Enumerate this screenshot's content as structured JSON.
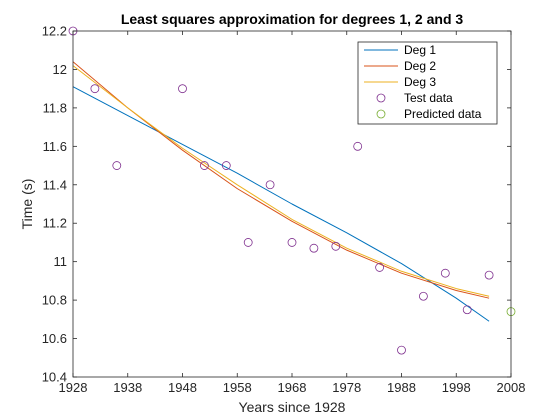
{
  "chart_data": {
    "type": "line",
    "title": "Least squares approximation for degrees 1, 2 and 3",
    "xlabel": "Years since 1928",
    "ylabel": "Time (s)",
    "xlim": [
      1928,
      2008
    ],
    "ylim": [
      10.4,
      12.2
    ],
    "x_ticks": [
      1928,
      1938,
      1948,
      1958,
      1968,
      1978,
      1988,
      1998,
      2008
    ],
    "y_ticks": [
      10.4,
      10.6,
      10.8,
      11,
      11.2,
      11.4,
      11.6,
      11.8,
      12,
      12.2
    ],
    "y_tick_labels": [
      "10.4",
      "10.6",
      "10.8",
      "11",
      "11.2",
      "11.4",
      "11.6",
      "11.8",
      "12",
      "12.2"
    ],
    "grid": false,
    "legend_position": "top-right",
    "series": [
      {
        "name": "Deg 1",
        "kind": "line",
        "color": "#0072BD",
        "x": [
          1928,
          1938,
          1948,
          1958,
          1968,
          1978,
          1988,
          1998,
          2004
        ],
        "y": [
          11.91,
          11.76,
          11.61,
          11.46,
          11.3,
          11.15,
          10.99,
          10.81,
          10.69
        ]
      },
      {
        "name": "Deg 2",
        "kind": "line",
        "color": "#D95319",
        "x": [
          1928,
          1938,
          1948,
          1958,
          1968,
          1978,
          1988,
          1998,
          2004
        ],
        "y": [
          12.04,
          11.8,
          11.58,
          11.38,
          11.21,
          11.06,
          10.94,
          10.85,
          10.81
        ]
      },
      {
        "name": "Deg 3",
        "kind": "line",
        "color": "#EDB120",
        "x": [
          1928,
          1938,
          1948,
          1958,
          1968,
          1978,
          1988,
          1998,
          2004
        ],
        "y": [
          12.02,
          11.8,
          11.59,
          11.4,
          11.22,
          11.07,
          10.95,
          10.86,
          10.82
        ]
      },
      {
        "name": "Test data",
        "kind": "scatter",
        "color": "#7E2F8E",
        "x": [
          1928,
          1932,
          1936,
          1948,
          1952,
          1956,
          1960,
          1964,
          1968,
          1972,
          1976,
          1980,
          1984,
          1988,
          1992,
          1996,
          2000,
          2004
        ],
        "y": [
          12.2,
          11.9,
          11.5,
          11.9,
          11.5,
          11.5,
          11.1,
          11.4,
          11.1,
          11.07,
          11.08,
          11.6,
          10.97,
          10.54,
          10.82,
          10.94,
          10.75,
          10.93
        ]
      },
      {
        "name": "Predicted data",
        "kind": "scatter",
        "color": "#77AC30",
        "x": [
          2008
        ],
        "y": [
          10.74
        ]
      }
    ]
  }
}
